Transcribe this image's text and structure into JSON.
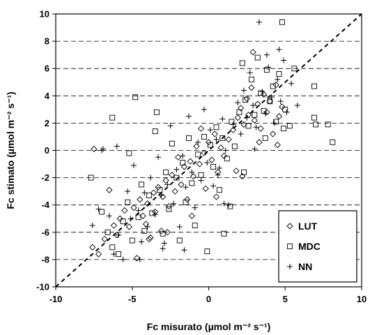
{
  "chart_data": {
    "type": "scatter",
    "title": "",
    "xlabel": "Fc misurato (µmol m⁻² s⁻¹)",
    "ylabel": "Fc stimato (µmol m⁻² s⁻¹)",
    "xlim": [
      -10,
      10
    ],
    "ylim": [
      -10,
      10
    ],
    "x_ticks": [
      -10,
      -5,
      0,
      5,
      10
    ],
    "y_ticks": [
      -10,
      -8,
      -6,
      -4,
      -2,
      0,
      2,
      4,
      6,
      8,
      10
    ],
    "grid": "horizontal dashed",
    "reference_line": "1:1",
    "legend_position": "bottom-right",
    "series": [
      {
        "name": "LUT",
        "marker": "diamond",
        "points": [
          [
            -7.6,
            -7.1
          ],
          [
            -7.2,
            -7.6
          ],
          [
            -6.8,
            -6.5
          ],
          [
            -6.2,
            -5.5
          ],
          [
            -6.0,
            -6.2
          ],
          [
            -5.8,
            -5.0
          ],
          [
            -5.5,
            -4.4
          ],
          [
            -5.2,
            -5.6
          ],
          [
            -4.9,
            -4.2
          ],
          [
            -4.7,
            -7.9
          ],
          [
            -4.5,
            -3.6
          ],
          [
            -4.3,
            -4.8
          ],
          [
            -4.1,
            -5.4
          ],
          [
            -4.0,
            -3.9
          ],
          [
            -3.8,
            -6.4
          ],
          [
            -3.6,
            -3.1
          ],
          [
            -3.5,
            -4.5
          ],
          [
            -3.3,
            -2.7
          ],
          [
            -3.1,
            -5.9
          ],
          [
            -3.0,
            -3.4
          ],
          [
            -2.8,
            -2.2
          ],
          [
            -2.6,
            -4.1
          ],
          [
            -2.4,
            -1.8
          ],
          [
            -2.2,
            -3.0
          ],
          [
            -2.0,
            -0.5
          ],
          [
            -1.8,
            -2.5
          ],
          [
            -1.6,
            -1.2
          ],
          [
            -1.4,
            -3.6
          ],
          [
            -1.2,
            -0.8
          ],
          [
            -1.0,
            -1.9
          ],
          [
            -0.8,
            0.3
          ],
          [
            -0.6,
            -1.0
          ],
          [
            -0.5,
            1.6
          ],
          [
            -0.3,
            -0.2
          ],
          [
            -0.2,
            -2.8
          ],
          [
            0.0,
            0.6
          ],
          [
            0.2,
            -0.7
          ],
          [
            0.4,
            1.2
          ],
          [
            0.6,
            -1.6
          ],
          [
            0.8,
            0.2
          ],
          [
            1.0,
            -0.4
          ],
          [
            1.3,
            0.8
          ],
          [
            1.6,
            1.5
          ],
          [
            1.9,
            2.4
          ],
          [
            2.1,
            3.1
          ],
          [
            2.3,
            1.9
          ],
          [
            2.5,
            3.8
          ],
          [
            2.6,
            2.6
          ],
          [
            2.8,
            4.6
          ],
          [
            2.9,
            7.2
          ],
          [
            3.0,
            2.2
          ],
          [
            3.2,
            3.4
          ],
          [
            3.4,
            1.6
          ],
          [
            3.6,
            4.1
          ],
          [
            3.8,
            2.8
          ],
          [
            4.0,
            3.6
          ],
          [
            4.2,
            1.2
          ],
          [
            4.4,
            4.8
          ],
          [
            4.6,
            2.5
          ],
          [
            4.8,
            3.2
          ],
          [
            -7.5,
            0.1
          ],
          [
            -6.5,
            -2.9
          ],
          [
            -3.9,
            -6.5
          ],
          [
            -2.7,
            -6.0
          ],
          [
            -1.1,
            -4.8
          ],
          [
            0.5,
            -3.4
          ],
          [
            1.8,
            -1.5
          ],
          [
            2.2,
            -1.9
          ],
          [
            3.3,
            0.6
          ],
          [
            4.5,
            0.4
          ]
        ]
      },
      {
        "name": "MDC",
        "marker": "square",
        "points": [
          [
            -7.7,
            -2.0
          ],
          [
            -7.0,
            -4.5
          ],
          [
            -6.6,
            -6.0
          ],
          [
            -6.3,
            -7.1
          ],
          [
            -5.9,
            -7.6
          ],
          [
            -5.6,
            -5.2
          ],
          [
            -5.3,
            -3.8
          ],
          [
            -5.0,
            -6.6
          ],
          [
            -4.8,
            3.9
          ],
          [
            -4.6,
            -4.9
          ],
          [
            -4.4,
            -2.5
          ],
          [
            -4.2,
            -5.9
          ],
          [
            -3.9,
            -3.3
          ],
          [
            -3.7,
            -4.6
          ],
          [
            -3.4,
            2.8
          ],
          [
            -3.2,
            -2.9
          ],
          [
            -3.0,
            -6.1
          ],
          [
            -2.8,
            -1.6
          ],
          [
            -2.6,
            -4.3
          ],
          [
            -2.4,
            0.5
          ],
          [
            -2.1,
            -2.0
          ],
          [
            -1.9,
            -6.6
          ],
          [
            -1.7,
            -0.9
          ],
          [
            -1.5,
            -3.8
          ],
          [
            -1.3,
            0.9
          ],
          [
            -1.1,
            -2.4
          ],
          [
            -0.9,
            -5.5
          ],
          [
            -0.7,
            -0.3
          ],
          [
            -0.5,
            -1.8
          ],
          [
            -0.3,
            1.0
          ],
          [
            -0.1,
            -7.4
          ],
          [
            0.1,
            0.4
          ],
          [
            0.3,
            -1.2
          ],
          [
            0.5,
            1.7
          ],
          [
            0.7,
            -2.9
          ],
          [
            0.9,
            0.9
          ],
          [
            1.2,
            -0.6
          ],
          [
            1.5,
            2.1
          ],
          [
            1.7,
            0.3
          ],
          [
            2.0,
            2.8
          ],
          [
            2.2,
            6.4
          ],
          [
            2.4,
            3.7
          ],
          [
            2.6,
            1.8
          ],
          [
            2.8,
            5.2
          ],
          [
            3.0,
            2.6
          ],
          [
            3.2,
            6.8
          ],
          [
            3.4,
            4.2
          ],
          [
            3.6,
            2.9
          ],
          [
            3.8,
            5.9
          ],
          [
            4.0,
            3.6
          ],
          [
            4.2,
            4.7
          ],
          [
            4.4,
            2.1
          ],
          [
            4.6,
            5.6
          ],
          [
            4.8,
            9.4
          ],
          [
            5.0,
            3.0
          ],
          [
            5.3,
            1.8
          ],
          [
            5.6,
            6.0
          ],
          [
            6.9,
            4.7
          ],
          [
            6.9,
            2.4
          ],
          [
            7.0,
            1.9
          ],
          [
            7.8,
            1.9
          ],
          [
            8.1,
            0.6
          ],
          [
            -6.3,
            2.4
          ],
          [
            -5.2,
            -0.2
          ],
          [
            -3.5,
            1.4
          ],
          [
            1.0,
            -6.1
          ],
          [
            1.4,
            -4.1
          ],
          [
            2.3,
            -1.6
          ],
          [
            3.7,
            0.9
          ],
          [
            4.9,
            1.6
          ]
        ]
      },
      {
        "name": "NN",
        "marker": "plus",
        "points": [
          [
            -7.6,
            -5.5
          ],
          [
            -7.2,
            -4.3
          ],
          [
            -6.9,
            0.1
          ],
          [
            -6.5,
            -4.8
          ],
          [
            -6.2,
            -7.6
          ],
          [
            -5.9,
            -6.2
          ],
          [
            -5.6,
            -8.0
          ],
          [
            -5.3,
            -3.0
          ],
          [
            -5.1,
            -5.0
          ],
          [
            -4.9,
            -1.1
          ],
          [
            -4.6,
            -4.4
          ],
          [
            -4.4,
            -6.7
          ],
          [
            -4.2,
            -3.1
          ],
          [
            -4.0,
            -5.6
          ],
          [
            -3.8,
            -2.0
          ],
          [
            -3.5,
            -4.7
          ],
          [
            -3.3,
            -0.5
          ],
          [
            -3.1,
            -3.3
          ],
          [
            -2.9,
            -6.8
          ],
          [
            -2.7,
            -2.5
          ],
          [
            -2.5,
            1.8
          ],
          [
            -2.3,
            -3.9
          ],
          [
            -2.1,
            -1.4
          ],
          [
            -1.9,
            -5.6
          ],
          [
            -1.7,
            -0.4
          ],
          [
            -1.5,
            -2.7
          ],
          [
            -1.3,
            2.5
          ],
          [
            -1.1,
            -1.6
          ],
          [
            -0.9,
            -4.2
          ],
          [
            -0.7,
            0.6
          ],
          [
            -0.5,
            -2.2
          ],
          [
            -0.3,
            3.0
          ],
          [
            -0.1,
            -0.9
          ],
          [
            0.1,
            1.5
          ],
          [
            0.3,
            -2.6
          ],
          [
            0.5,
            0.8
          ],
          [
            0.7,
            -1.3
          ],
          [
            0.9,
            2.3
          ],
          [
            1.1,
            0.0
          ],
          [
            1.3,
            -4.0
          ],
          [
            1.6,
            1.9
          ],
          [
            1.9,
            3.5
          ],
          [
            2.1,
            1.2
          ],
          [
            2.3,
            4.4
          ],
          [
            2.5,
            2.4
          ],
          [
            2.7,
            5.7
          ],
          [
            2.9,
            3.3
          ],
          [
            3.1,
            1.7
          ],
          [
            3.3,
            9.4
          ],
          [
            3.5,
            4.3
          ],
          [
            3.7,
            2.7
          ],
          [
            3.9,
            6.1
          ],
          [
            4.1,
            3.9
          ],
          [
            4.3,
            2.0
          ],
          [
            4.5,
            5.2
          ],
          [
            4.7,
            3.6
          ],
          [
            4.9,
            6.6
          ],
          [
            5.1,
            2.8
          ],
          [
            5.4,
            4.9
          ],
          [
            5.8,
            3.3
          ],
          [
            -7.0,
            0.0
          ],
          [
            -6.0,
            0.3
          ],
          [
            -4.5,
            -8.0
          ],
          [
            -3.0,
            -7.2
          ],
          [
            -1.6,
            -7.3
          ],
          [
            0.6,
            -1.8
          ],
          [
            1.0,
            -3.9
          ],
          [
            3.8,
            7.0
          ],
          [
            4.6,
            7.4
          ],
          [
            3.0,
            0.1
          ]
        ]
      }
    ]
  }
}
